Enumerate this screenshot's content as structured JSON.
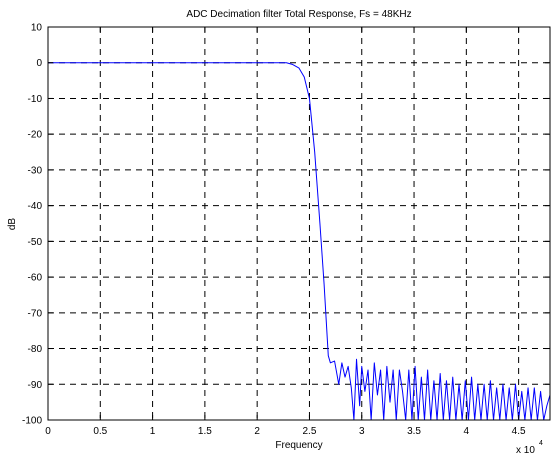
{
  "chart_data": {
    "type": "line",
    "title": "ADC Decimation filter Total Response, Fs = 48KHz",
    "xlabel": "Frequency",
    "ylabel": "dB",
    "x_exponent_label": "x 10",
    "x_exponent_power": "4",
    "xlim": [
      0,
      48000
    ],
    "ylim": [
      -100,
      10
    ],
    "grid": true,
    "x_ticks": [
      0,
      5000,
      10000,
      15000,
      20000,
      25000,
      30000,
      35000,
      40000,
      45000
    ],
    "x_tick_labels": [
      "0",
      "0.5",
      "1",
      "1.5",
      "2",
      "2.5",
      "3",
      "3.5",
      "4",
      "4.5"
    ],
    "y_ticks": [
      10,
      0,
      -10,
      -20,
      -30,
      -40,
      -50,
      -60,
      -70,
      -80,
      -90,
      -100
    ],
    "y_tick_labels": [
      "10",
      "0",
      "-10",
      "-20",
      "-30",
      "-40",
      "-50",
      "-60",
      "-70",
      "-80",
      "-90",
      "-100"
    ],
    "line_color": "#0000ff",
    "series": [
      {
        "x": [
          0,
          5000,
          10000,
          15000,
          20000,
          22000,
          22800,
          23400,
          24000,
          24500,
          25000,
          25500,
          26000,
          26400,
          26800,
          27000,
          27400,
          27800,
          28100,
          28400,
          28700,
          29000,
          29250,
          29500,
          29800,
          30000,
          30300,
          30600,
          30900,
          31200,
          31500,
          31800,
          32100,
          32400,
          32700,
          33000,
          33300,
          33600,
          33900,
          34200,
          34500,
          34800,
          35100,
          35400,
          35700,
          36000,
          36300,
          36600,
          36900,
          37200,
          37500,
          37800,
          38100,
          38400,
          38700,
          39000,
          39300,
          39600,
          39900,
          40200,
          40500,
          40800,
          41100,
          41400,
          41700,
          42000,
          42300,
          42600,
          42900,
          43200,
          43500,
          43800,
          44100,
          44400,
          44700,
          45000,
          45300,
          45600,
          45900,
          46200,
          46500,
          46800,
          47100,
          47400,
          47700,
          48000
        ],
        "values": [
          0,
          0,
          0,
          0,
          0,
          0,
          0,
          -0.5,
          -1.5,
          -4,
          -10,
          -25,
          -45,
          -62,
          -82,
          -84,
          -83.5,
          -90,
          -84,
          -88,
          -85,
          -91,
          -100,
          -83,
          -96,
          -85,
          -92,
          -86,
          -100,
          -84,
          -93,
          -86,
          -100,
          -85,
          -95,
          -86,
          -100,
          -86,
          -92,
          -100,
          -86,
          -100,
          -85,
          -100,
          -88,
          -100,
          -86,
          -100,
          -89,
          -100,
          -87,
          -100,
          -89,
          -100,
          -88,
          -100,
          -90,
          -100,
          -89,
          -100,
          -88,
          -100,
          -90,
          -100,
          -90,
          -100,
          -89,
          -100,
          -91,
          -100,
          -90,
          -100,
          -91,
          -100,
          -90,
          -100,
          -92,
          -100,
          -91,
          -100,
          -91,
          -100,
          -92,
          -100,
          -96,
          -93
        ]
      }
    ]
  }
}
